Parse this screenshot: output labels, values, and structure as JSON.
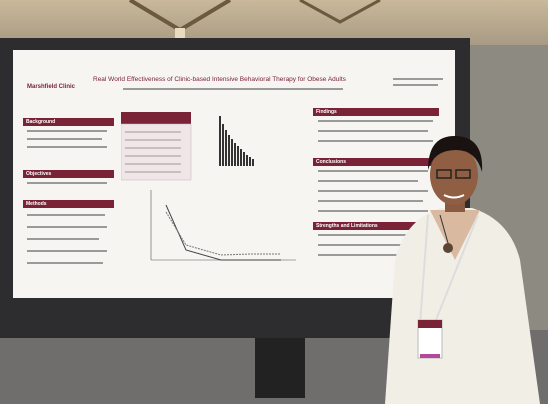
{
  "scene": {
    "poster": {
      "title": "Real World Effectiveness of Clinic-based Intensive Behavioral Therapy for Obese Adults",
      "logo": "Marshfield Clinic",
      "sections": [
        "Background",
        "Objectives",
        "Methods",
        "Findings",
        "Conclusions",
        "Strengths and Limitations"
      ]
    }
  }
}
